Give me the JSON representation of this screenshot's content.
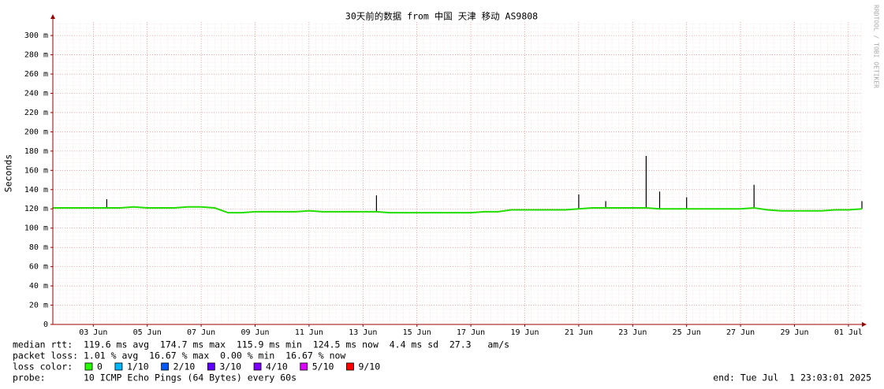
{
  "chart_data": {
    "type": "line",
    "title": "30天前的数据 from 中国 天津 移动 AS9808",
    "y_label": "Seconds",
    "watermark": "RRDTOOL / TOBI OETIKER",
    "xlim": [
      1.5,
      31.5
    ],
    "xticks": [
      {
        "value": 3,
        "label": "03 Jun"
      },
      {
        "value": 5,
        "label": "05 Jun"
      },
      {
        "value": 7,
        "label": "07 Jun"
      },
      {
        "value": 9,
        "label": "09 Jun"
      },
      {
        "value": 11,
        "label": "11 Jun"
      },
      {
        "value": 13,
        "label": "13 Jun"
      },
      {
        "value": 15,
        "label": "15 Jun"
      },
      {
        "value": 17,
        "label": "17 Jun"
      },
      {
        "value": 19,
        "label": "19 Jun"
      },
      {
        "value": 21,
        "label": "21 Jun"
      },
      {
        "value": 23,
        "label": "23 Jun"
      },
      {
        "value": 25,
        "label": "25 Jun"
      },
      {
        "value": 27,
        "label": "27 Jun"
      },
      {
        "value": 29,
        "label": "29 Jun"
      },
      {
        "value": 31,
        "label": "01 Jul"
      }
    ],
    "ylim": [
      0,
      314
    ],
    "yticks": [
      0,
      {
        "value": 20,
        "label": "20 m"
      },
      {
        "value": 40,
        "label": "40 m"
      },
      {
        "value": 60,
        "label": "60 m"
      },
      {
        "value": 80,
        "label": "80 m"
      },
      {
        "value": 100,
        "label": "100 m"
      },
      {
        "value": 120,
        "label": "120 m"
      },
      {
        "value": 140,
        "label": "140 m"
      },
      {
        "value": 160,
        "label": "160 m"
      },
      {
        "value": 180,
        "label": "180 m"
      },
      {
        "value": 200,
        "label": "200 m"
      },
      {
        "value": 220,
        "label": "220 m"
      },
      {
        "value": 240,
        "label": "240 m"
      },
      {
        "value": 260,
        "label": "260 m"
      },
      {
        "value": 280,
        "label": "280 m"
      },
      {
        "value": 300,
        "label": "300 m"
      }
    ],
    "grid": true,
    "x": [
      1.5,
      2,
      2.5,
      3,
      3.5,
      4,
      4.5,
      5,
      5.5,
      6,
      6.5,
      7,
      7.5,
      8,
      8.5,
      9,
      9.5,
      10,
      10.5,
      11,
      11.5,
      12,
      12.5,
      13,
      13.5,
      14,
      14.5,
      15,
      15.5,
      16,
      16.5,
      17,
      17.5,
      18,
      18.5,
      19,
      19.5,
      20,
      20.5,
      21,
      21.5,
      22,
      22.5,
      23,
      23.5,
      24,
      24.5,
      25,
      25.5,
      26,
      26.5,
      27,
      27.5,
      28,
      28.5,
      29,
      29.5,
      30,
      30.5,
      31,
      31.5
    ],
    "series": [
      {
        "color": "#22dd00",
        "values": [
          121,
          121,
          121,
          121,
          121,
          121,
          122,
          121,
          121,
          121,
          122,
          122,
          121,
          116,
          116,
          117,
          117,
          117,
          117,
          118,
          117,
          117,
          117,
          117,
          117,
          116,
          116,
          116,
          116,
          116,
          116,
          116,
          117,
          117,
          119,
          119,
          119,
          119,
          119,
          120,
          121,
          121,
          121,
          121,
          121,
          120,
          120,
          120,
          120,
          120,
          120,
          120,
          121,
          119,
          118,
          118,
          118,
          118,
          119,
          119,
          120
        ]
      },
      {
        "color": "#000000",
        "values": [
          null,
          null,
          null,
          null,
          130,
          null,
          null,
          null,
          null,
          null,
          null,
          null,
          null,
          null,
          null,
          null,
          null,
          null,
          null,
          null,
          null,
          null,
          null,
          null,
          134,
          null,
          null,
          null,
          null,
          null,
          null,
          null,
          null,
          null,
          null,
          null,
          null,
          null,
          null,
          135,
          null,
          128,
          null,
          null,
          175,
          138,
          null,
          132,
          null,
          null,
          null,
          null,
          145,
          null,
          null,
          null,
          null,
          null,
          null,
          null,
          128
        ]
      }
    ],
    "stats": [
      "median rtt:  119.6 ms avg  174.7 ms max  115.9 ms min  124.5 ms now  4.4 ms sd  27.3   am/s",
      "packet loss: 1.01 % avg  16.67 % max  0.00 % min  16.67 % now"
    ],
    "loss_color_label": "loss color:",
    "loss_colors": [
      {
        "label": "0",
        "color": "#26ff00"
      },
      {
        "label": "1/10",
        "color": "#00b8ff"
      },
      {
        "label": "2/10",
        "color": "#0059ff"
      },
      {
        "label": "3/10",
        "color": "#5e00ff"
      },
      {
        "label": "4/10",
        "color": "#7e00ff"
      },
      {
        "label": "5/10",
        "color": "#dd00ff"
      },
      {
        "label": "9/10",
        "color": "#ff0000"
      }
    ],
    "probe": "probe:       10 ICMP Echo Pings (64 Bytes) every 60s",
    "end": "end: Tue Jul  1 23:03:01 2025"
  }
}
